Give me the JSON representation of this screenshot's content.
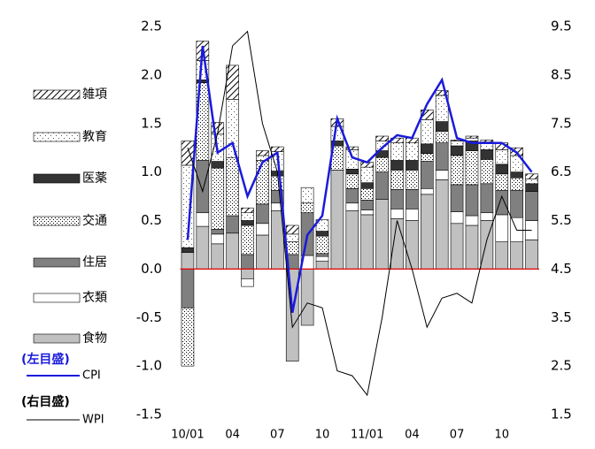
{
  "chart_data": {
    "type": "bar",
    "categories": [
      "10/01",
      null,
      null,
      "04",
      null,
      null,
      "07",
      null,
      null,
      "10",
      null,
      null,
      "11/01",
      null,
      null,
      "04",
      null,
      null,
      "07",
      null,
      null,
      "10",
      null,
      null
    ],
    "series": [
      {
        "name": "食物",
        "color": "#c0c0c0",
        "values": [
          0.17,
          0.44,
          0.26,
          0.37,
          -0.1,
          0.35,
          0.6,
          -0.95,
          -0.58,
          0.08,
          1.02,
          0.6,
          0.56,
          0.72,
          0.52,
          0.5,
          0.77,
          0.92,
          0.47,
          0.45,
          0.5,
          0.28,
          0.28,
          0.3
        ]
      },
      {
        "name": "衣類",
        "color": "#ffffff",
        "values": [
          0,
          0.14,
          0.1,
          0,
          -0.08,
          0.12,
          0.08,
          0,
          0.14,
          0.05,
          0,
          0.08,
          0.05,
          0,
          0.1,
          0.12,
          0.06,
          0.1,
          0.12,
          0.1,
          0.08,
          0.28,
          0.25,
          0.2
        ]
      },
      {
        "name": "住居",
        "color": "#808080",
        "values": [
          -0.4,
          0.54,
          0.05,
          0.18,
          0.15,
          0.2,
          0.13,
          0.15,
          0.44,
          0.03,
          0,
          0.15,
          0.1,
          0.28,
          0.2,
          0.2,
          0.28,
          0.28,
          0.28,
          0.32,
          0.3,
          0.25,
          0.28,
          0.3
        ]
      },
      {
        "name": "交通",
        "color": "#e0e0e0",
        "pattern": "dense-dots",
        "values": [
          -0.6,
          0.8,
          0.63,
          0.6,
          0.3,
          0.45,
          0.15,
          0.13,
          0.1,
          0.18,
          0.25,
          0.15,
          0.12,
          0.15,
          0.2,
          0.2,
          0.08,
          0.12,
          0.3,
          0.35,
          0.25,
          0.17,
          0.13,
          0
        ]
      },
      {
        "name": "医薬",
        "color": "#333333",
        "values": [
          0.05,
          0.03,
          0.07,
          0,
          0.05,
          0,
          0.05,
          0,
          0,
          0.05,
          0.05,
          0.05,
          0.06,
          0.07,
          0.1,
          0.1,
          0.1,
          0.1,
          0.1,
          0.1,
          0.1,
          0.1,
          0.06,
          0.08
        ]
      },
      {
        "name": "教育",
        "color": "#f4f4f4",
        "pattern": "sparse-dots",
        "values": [
          0.85,
          0.2,
          0.28,
          0.6,
          0.08,
          0.05,
          0.2,
          0.08,
          0.16,
          0.12,
          0.15,
          0.2,
          0.16,
          0.1,
          0.18,
          0.18,
          0.25,
          0.27,
          0.05,
          0.03,
          0.08,
          0.15,
          0.17,
          0.05
        ]
      },
      {
        "name": "雑項",
        "color": "#ffffff",
        "pattern": "hatch",
        "values": [
          0.25,
          0.2,
          0.12,
          0.35,
          0.05,
          0.05,
          0.05,
          0.09,
          0,
          0,
          0.08,
          0.03,
          0.05,
          0.05,
          0.05,
          0.05,
          0.1,
          0.05,
          0.01,
          0.02,
          0.02,
          0.07,
          0.08,
          0.05
        ]
      },
      {
        "name": "CPI",
        "type": "line",
        "color": "#1a1adc",
        "values": [
          0.3,
          2.3,
          1.2,
          1.3,
          0.75,
          1.1,
          1.2,
          -0.45,
          0.35,
          0.55,
          1.55,
          1.15,
          1.1,
          1.25,
          1.38,
          1.35,
          1.7,
          1.95,
          1.35,
          1.3,
          1.3,
          1.3,
          1.2,
          1.0
        ]
      },
      {
        "name": "WPI",
        "type": "line",
        "axis": "y2",
        "color": "#000000",
        "values": [
          7.0,
          6.1,
          7.3,
          9.1,
          9.4,
          7.5,
          6.5,
          3.3,
          3.8,
          3.7,
          2.4,
          2.3,
          1.9,
          3.5,
          5.5,
          4.5,
          3.3,
          3.9,
          4.0,
          3.8,
          5.1,
          6.0,
          5.3,
          5.3
        ]
      }
    ],
    "left_axis_note": "(左目盛)",
    "right_axis_note": "(右目盛)",
    "ylim": [
      -1.5,
      2.5
    ],
    "yticks": [
      -1.5,
      {
        "value": -1,
        "label": "-1.0"
      },
      -0.5,
      {
        "value": 0,
        "label": "0.0"
      },
      0.5,
      {
        "value": 1,
        "label": "1.0"
      },
      1.5,
      {
        "value": 2,
        "label": "2.0"
      },
      2.5
    ],
    "y2lim": [
      1.5,
      9.5
    ],
    "y2ticks": [
      1.5,
      2.5,
      3.5,
      4.5,
      5.5,
      6.5,
      7.5,
      8.5,
      9.5
    ],
    "zero_line_color": "#e00000"
  }
}
